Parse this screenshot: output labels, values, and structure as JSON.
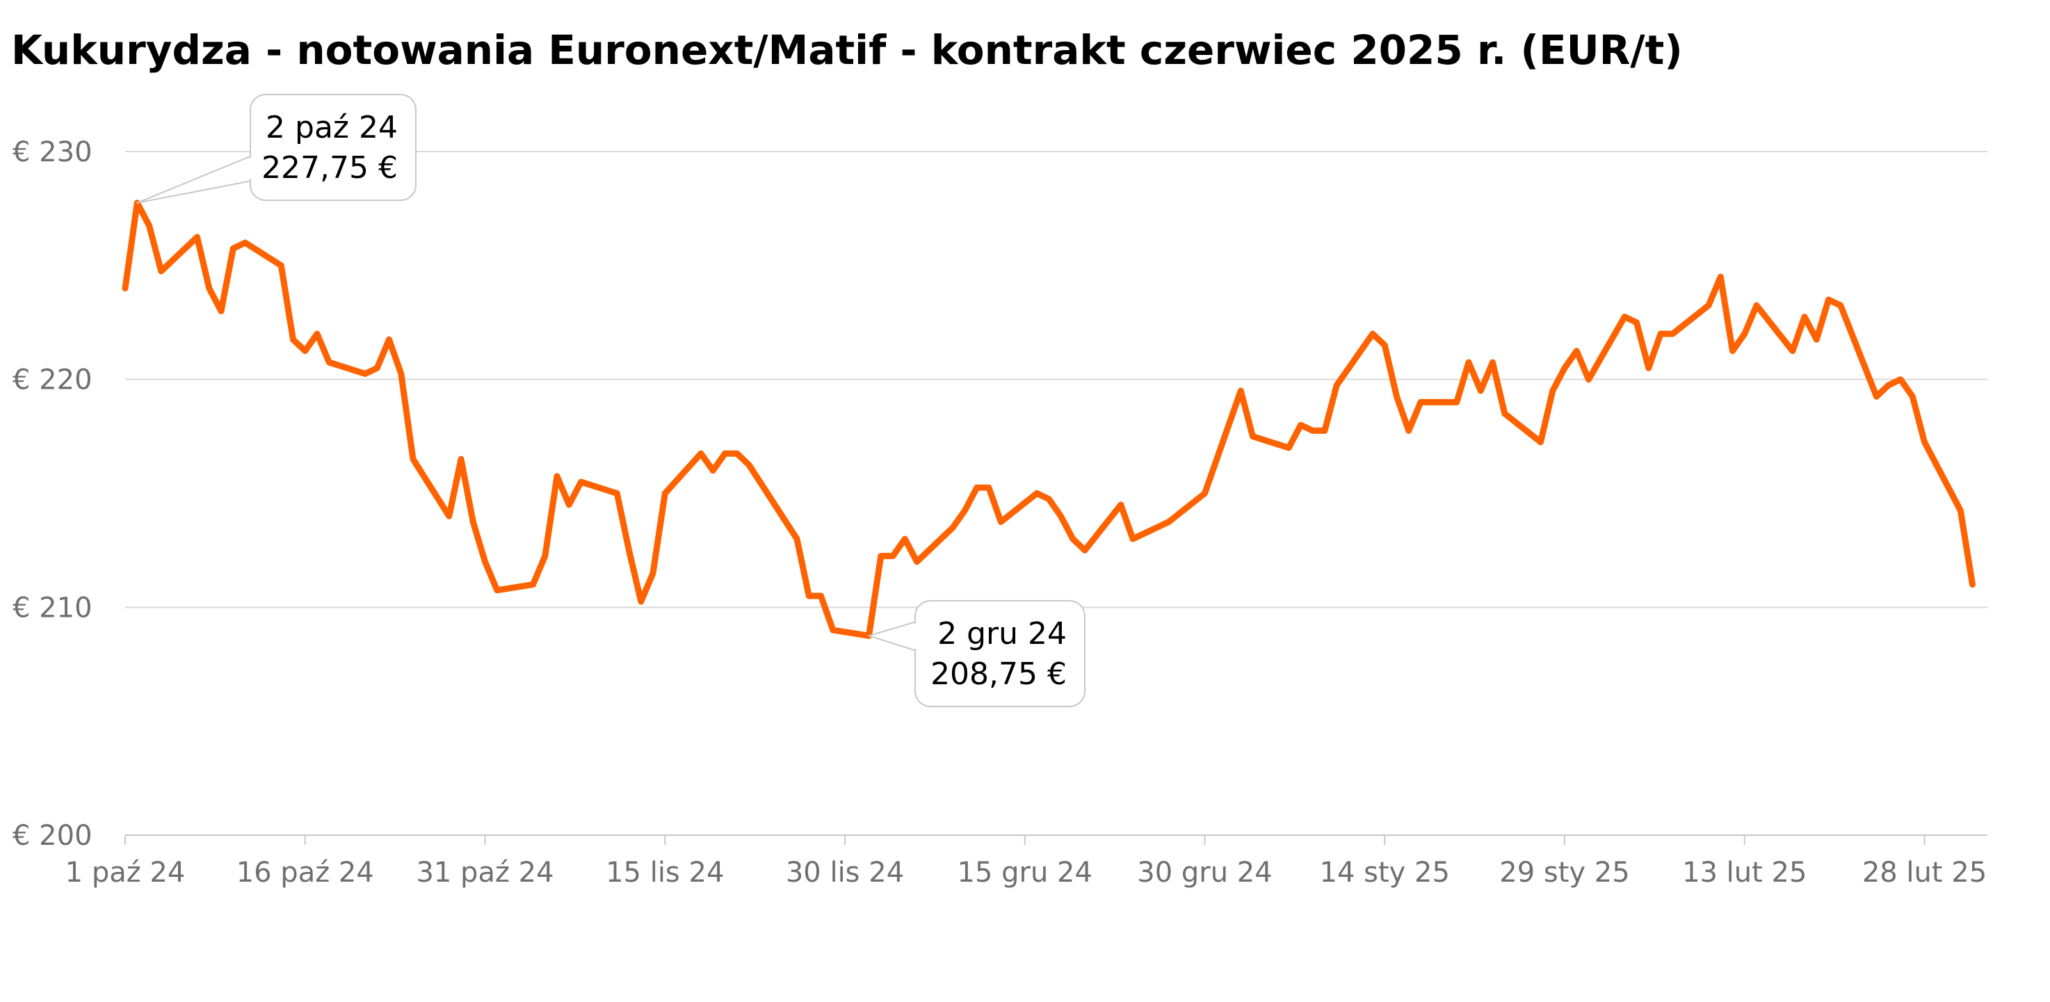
{
  "chart_data": {
    "type": "line",
    "title": "Kukurydza - notowania Euronext/Matif - kontrakt czerwiec 2025 r. (EUR/t)",
    "xlabel": "",
    "ylabel": "",
    "x_range": [
      "2024-10-01",
      "2025-03-03"
    ],
    "ylim": [
      200,
      230
    ],
    "y_ticks": [
      {
        "value": 230,
        "label": "€ 230"
      },
      {
        "value": 220,
        "label": "€ 220"
      },
      {
        "value": 210,
        "label": "€ 210"
      },
      {
        "value": 200,
        "label": "€ 200"
      }
    ],
    "x_ticks": [
      {
        "date": "2024-10-01",
        "label": "1 paź 24"
      },
      {
        "date": "2024-10-16",
        "label": "16 paź 24"
      },
      {
        "date": "2024-10-31",
        "label": "31 paź 24"
      },
      {
        "date": "2024-11-15",
        "label": "15 lis 24"
      },
      {
        "date": "2024-11-30",
        "label": "30 lis 24"
      },
      {
        "date": "2024-12-15",
        "label": "15 gru 24"
      },
      {
        "date": "2024-12-30",
        "label": "30 gru 24"
      },
      {
        "date": "2025-01-14",
        "label": "14 sty 25"
      },
      {
        "date": "2025-01-29",
        "label": "29 sty 25"
      },
      {
        "date": "2025-02-13",
        "label": "13 lut 25"
      },
      {
        "date": "2025-02-28",
        "label": "28 lut 25"
      }
    ],
    "grid": true,
    "legend": "none",
    "color": "#FF6200",
    "series": [
      {
        "values": [
          [
            "2024-10-01",
            224.0
          ],
          [
            "2024-10-02",
            227.75
          ],
          [
            "2024-10-03",
            226.75
          ],
          [
            "2024-10-04",
            224.75
          ],
          [
            "2024-10-07",
            226.25
          ],
          [
            "2024-10-08",
            224.0
          ],
          [
            "2024-10-09",
            223.0
          ],
          [
            "2024-10-10",
            225.75
          ],
          [
            "2024-10-11",
            226.0
          ],
          [
            "2024-10-14",
            225.0
          ],
          [
            "2024-10-15",
            221.75
          ],
          [
            "2024-10-16",
            221.25
          ],
          [
            "2024-10-17",
            222.0
          ],
          [
            "2024-10-18",
            220.75
          ],
          [
            "2024-10-21",
            220.25
          ],
          [
            "2024-10-22",
            220.5
          ],
          [
            "2024-10-23",
            221.75
          ],
          [
            "2024-10-24",
            220.25
          ],
          [
            "2024-10-25",
            216.5
          ],
          [
            "2024-10-28",
            214.0
          ],
          [
            "2024-10-29",
            216.5
          ],
          [
            "2024-10-30",
            213.75
          ],
          [
            "2024-10-31",
            212.0
          ],
          [
            "2024-11-01",
            210.75
          ],
          [
            "2024-11-04",
            211.0
          ],
          [
            "2024-11-05",
            212.25
          ],
          [
            "2024-11-06",
            215.75
          ],
          [
            "2024-11-07",
            214.5
          ],
          [
            "2024-11-08",
            215.5
          ],
          [
            "2024-11-11",
            215.0
          ],
          [
            "2024-11-12",
            212.5
          ],
          [
            "2024-11-13",
            210.25
          ],
          [
            "2024-11-14",
            211.5
          ],
          [
            "2024-11-15",
            215.0
          ],
          [
            "2024-11-18",
            216.75
          ],
          [
            "2024-11-19",
            216.0
          ],
          [
            "2024-11-20",
            216.75
          ],
          [
            "2024-11-21",
            216.75
          ],
          [
            "2024-11-22",
            216.25
          ],
          [
            "2024-11-26",
            213.0
          ],
          [
            "2024-11-27",
            210.5
          ],
          [
            "2024-11-28",
            210.5
          ],
          [
            "2024-11-29",
            209.0
          ],
          [
            "2024-12-02",
            208.75
          ],
          [
            "2024-12-03",
            212.25
          ],
          [
            "2024-12-04",
            212.25
          ],
          [
            "2024-12-05",
            213.0
          ],
          [
            "2024-12-06",
            212.0
          ],
          [
            "2024-12-09",
            213.5
          ],
          [
            "2024-12-10",
            214.25
          ],
          [
            "2024-12-11",
            215.25
          ],
          [
            "2024-12-12",
            215.25
          ],
          [
            "2024-12-13",
            213.75
          ],
          [
            "2024-12-16",
            215.0
          ],
          [
            "2024-12-17",
            214.75
          ],
          [
            "2024-12-18",
            214.0
          ],
          [
            "2024-12-19",
            213.0
          ],
          [
            "2024-12-20",
            212.5
          ],
          [
            "2024-12-23",
            214.5
          ],
          [
            "2024-12-24",
            213.0
          ],
          [
            "2024-12-27",
            213.75
          ],
          [
            "2024-12-30",
            215.0
          ],
          [
            "2025-01-02",
            219.5
          ],
          [
            "2025-01-03",
            217.5
          ],
          [
            "2025-01-06",
            217.0
          ],
          [
            "2025-01-07",
            218.0
          ],
          [
            "2025-01-08",
            217.75
          ],
          [
            "2025-01-09",
            217.75
          ],
          [
            "2025-01-10",
            219.75
          ],
          [
            "2025-01-13",
            222.0
          ],
          [
            "2025-01-14",
            221.5
          ],
          [
            "2025-01-15",
            219.25
          ],
          [
            "2025-01-16",
            217.75
          ],
          [
            "2025-01-17",
            219.0
          ],
          [
            "2025-01-20",
            219.0
          ],
          [
            "2025-01-21",
            220.75
          ],
          [
            "2025-01-22",
            219.5
          ],
          [
            "2025-01-23",
            220.75
          ],
          [
            "2025-01-24",
            218.5
          ],
          [
            "2025-01-27",
            217.25
          ],
          [
            "2025-01-28",
            219.5
          ],
          [
            "2025-01-29",
            220.5
          ],
          [
            "2025-01-30",
            221.25
          ],
          [
            "2025-01-31",
            220.0
          ],
          [
            "2025-02-03",
            222.75
          ],
          [
            "2025-02-04",
            222.5
          ],
          [
            "2025-02-05",
            220.5
          ],
          [
            "2025-02-06",
            222.0
          ],
          [
            "2025-02-07",
            222.0
          ],
          [
            "2025-02-10",
            223.25
          ],
          [
            "2025-02-11",
            224.5
          ],
          [
            "2025-02-12",
            221.25
          ],
          [
            "2025-02-13",
            222.0
          ],
          [
            "2025-02-14",
            223.25
          ],
          [
            "2025-02-17",
            221.25
          ],
          [
            "2025-02-18",
            222.75
          ],
          [
            "2025-02-19",
            221.75
          ],
          [
            "2025-02-20",
            223.5
          ],
          [
            "2025-02-21",
            223.25
          ],
          [
            "2025-02-24",
            219.25
          ],
          [
            "2025-02-25",
            219.75
          ],
          [
            "2025-02-26",
            220.0
          ],
          [
            "2025-02-27",
            219.25
          ],
          [
            "2025-02-28",
            217.25
          ],
          [
            "2025-03-03",
            214.25
          ],
          [
            "2025-03-04",
            211.0
          ]
        ]
      }
    ],
    "annotations": [
      {
        "date": "2024-10-02",
        "value": 227.75,
        "lines": [
          "2 paź 24",
          "227,75 €"
        ]
      },
      {
        "date": "2024-12-02",
        "value": 208.75,
        "lines": [
          "2 gru 24",
          "208,75 €"
        ]
      }
    ]
  }
}
